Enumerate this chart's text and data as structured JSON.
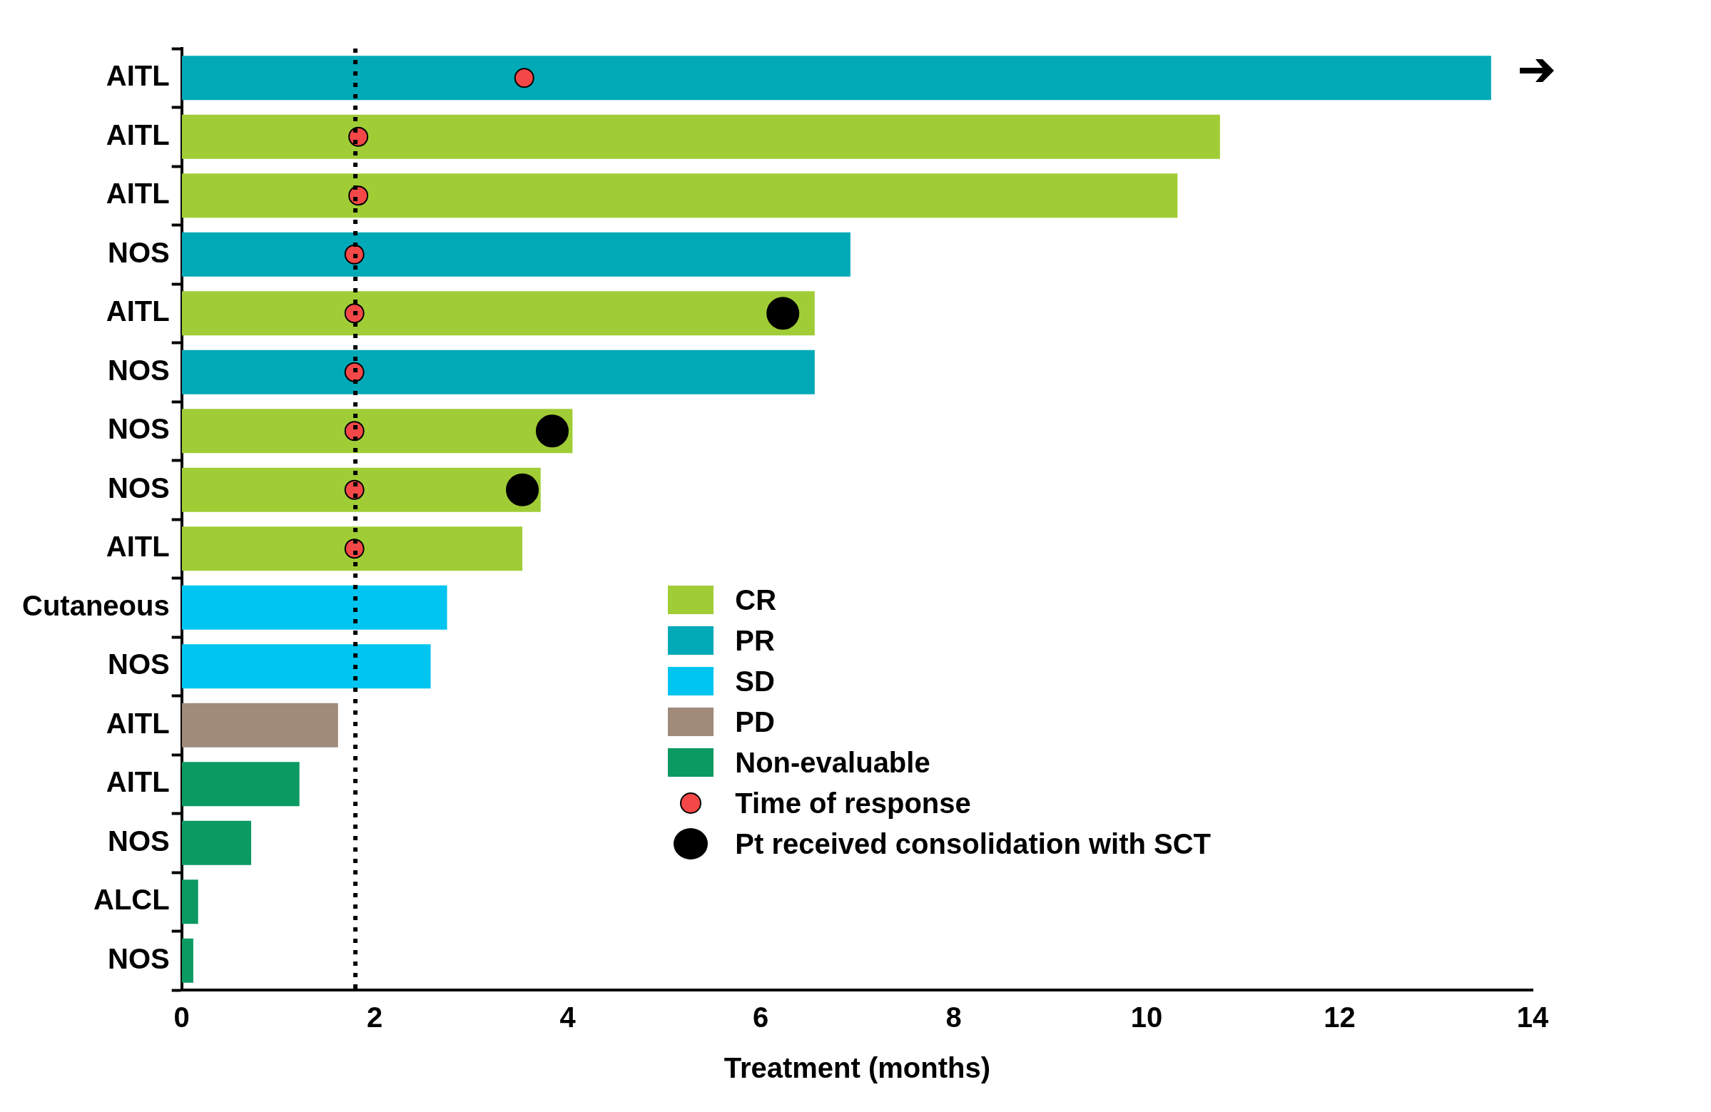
{
  "chart_data": {
    "type": "bar",
    "orientation": "horizontal",
    "xlabel": "Treatment (months)",
    "categories": [
      "AITL",
      "AITL",
      "AITL",
      "NOS",
      "AITL",
      "NOS",
      "NOS",
      "NOS",
      "AITL",
      "Cutaneous",
      "NOS",
      "AITL",
      "AITL",
      "NOS",
      "ALCL",
      "NOS"
    ],
    "series": [
      {
        "name": "CR",
        "color": "#a0cd36",
        "values": [
          null,
          10.76,
          10.32,
          null,
          6.56,
          null,
          4.05,
          3.72,
          3.53,
          null,
          null,
          null,
          null,
          null,
          null,
          null
        ]
      },
      {
        "name": "PR",
        "color": "#02a9b7",
        "values": [
          13.57,
          null,
          null,
          6.93,
          null,
          6.56,
          null,
          null,
          null,
          null,
          null,
          null,
          null,
          null,
          null,
          null
        ]
      },
      {
        "name": "SD",
        "color": "#00c5f0",
        "values": [
          null,
          null,
          null,
          null,
          null,
          null,
          null,
          null,
          null,
          2.75,
          2.58,
          null,
          null,
          null,
          null,
          null
        ]
      },
      {
        "name": "PD",
        "color": "#a08a7a",
        "values": [
          null,
          null,
          null,
          null,
          null,
          null,
          null,
          null,
          null,
          null,
          null,
          1.62,
          null,
          null,
          null,
          null
        ]
      },
      {
        "name": "Non-evaluable",
        "color": "#0b9a62",
        "values": [
          null,
          null,
          null,
          null,
          null,
          null,
          null,
          null,
          null,
          null,
          null,
          null,
          1.22,
          0.72,
          0.17,
          0.12
        ]
      },
      {
        "name": "Time of response",
        "type": "scatter",
        "color": "#f44848",
        "values": [
          3.55,
          1.83,
          1.83,
          1.79,
          1.79,
          1.79,
          1.79,
          1.79,
          1.79,
          null,
          null,
          null,
          null,
          null,
          null,
          null
        ]
      },
      {
        "name": "Pt received consolidation with SCT",
        "type": "scatter",
        "color": "#000000",
        "values": [
          null,
          null,
          null,
          null,
          6.23,
          null,
          3.84,
          3.53,
          null,
          null,
          null,
          null,
          null,
          null,
          null,
          null
        ]
      }
    ],
    "xlim": [
      0,
      14
    ],
    "xticks": [
      0,
      2,
      4,
      6,
      8,
      10,
      12,
      14
    ],
    "ref_lines": [
      {
        "axis": "x",
        "value": 1.8,
        "line_style": "dotted",
        "color": "#000000"
      }
    ],
    "grid": false,
    "legend": "right",
    "marker": "circle"
  }
}
